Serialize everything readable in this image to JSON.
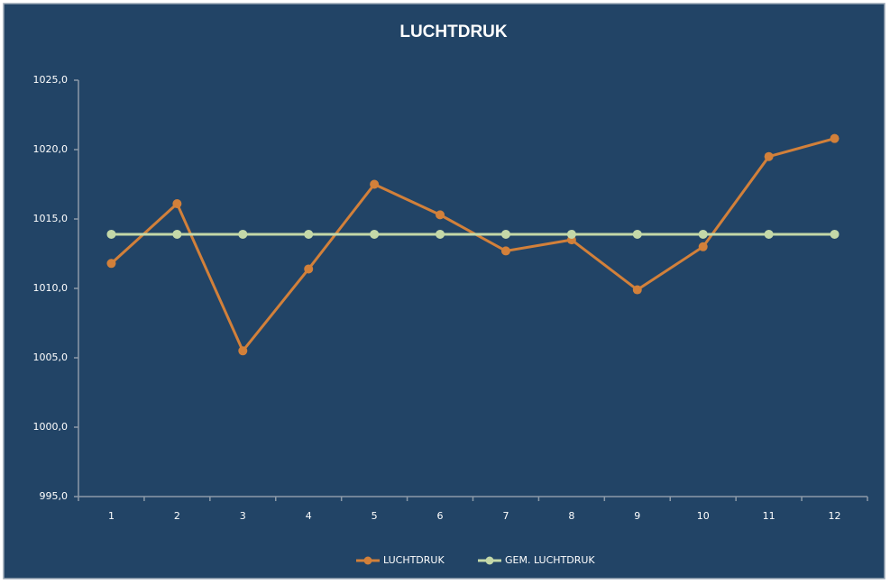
{
  "chart_data": {
    "type": "line",
    "title": "LUCHTDRUK",
    "categories": [
      "1",
      "2",
      "3",
      "4",
      "5",
      "6",
      "7",
      "8",
      "9",
      "10",
      "11",
      "12"
    ],
    "series": [
      {
        "name": "LUCHTDRUK",
        "color": "#d2803a",
        "values": [
          1011.8,
          1016.1,
          1005.5,
          1011.4,
          1017.5,
          1015.3,
          1012.7,
          1013.5,
          1009.9,
          1013.0,
          1019.5,
          1020.8
        ]
      },
      {
        "name": "GEM. LUCHTDRUK",
        "color": "#c4d8a8",
        "values": [
          1013.9,
          1013.9,
          1013.9,
          1013.9,
          1013.9,
          1013.9,
          1013.9,
          1013.9,
          1013.9,
          1013.9,
          1013.9,
          1013.9
        ]
      }
    ],
    "ylim": [
      995,
      1025
    ],
    "yticks": [
      {
        "value": 995,
        "label": "995,0"
      },
      {
        "value": 1000,
        "label": "1000,0"
      },
      {
        "value": 1005,
        "label": "1005,0"
      },
      {
        "value": 1010,
        "label": "1010,0"
      },
      {
        "value": 1015,
        "label": "1015,0"
      },
      {
        "value": 1020,
        "label": "1020,0"
      },
      {
        "value": 1025,
        "label": "1025,0"
      }
    ],
    "grid": false,
    "legend": "bottom"
  }
}
